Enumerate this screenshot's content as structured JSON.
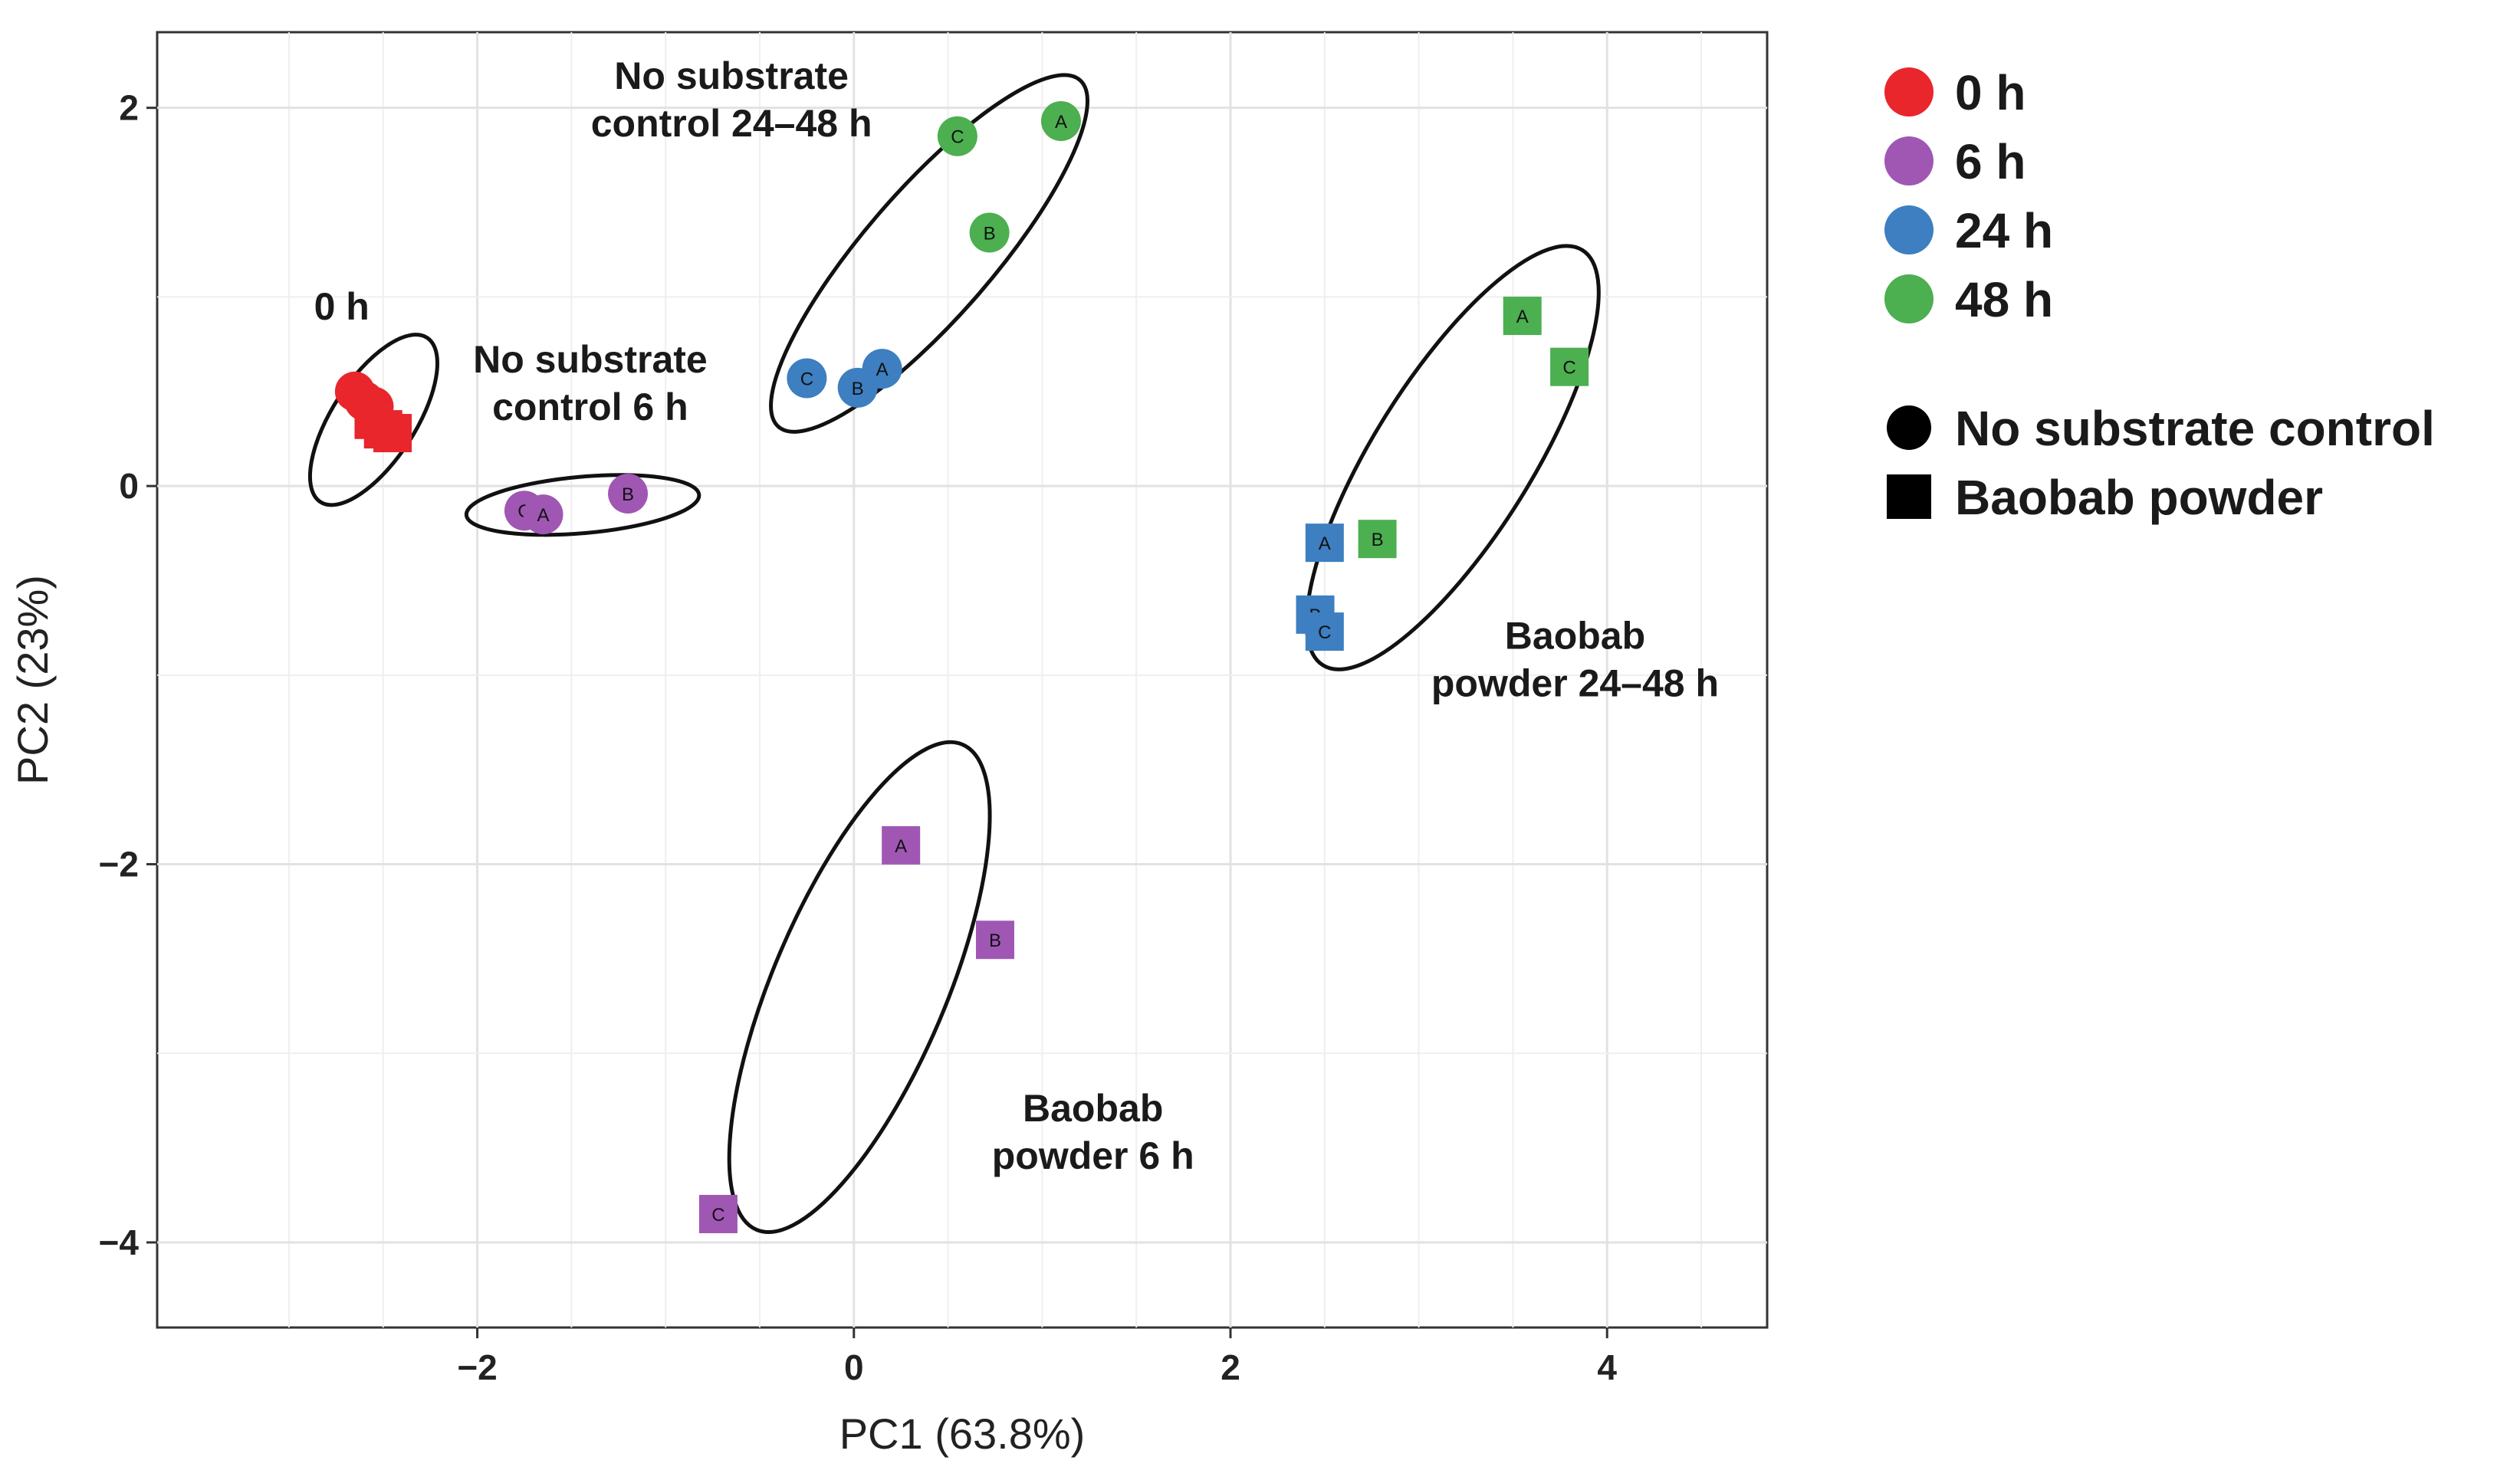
{
  "chart_data": {
    "type": "scatter",
    "xlabel": "PC1 (63.8%)",
    "ylabel": "PC2 (23%)",
    "xlim": [
      -3.7,
      4.85
    ],
    "ylim": [
      -4.45,
      2.4
    ],
    "xticks": [
      -2,
      0,
      2,
      4
    ],
    "yticks": [
      2,
      0,
      -2,
      -4
    ],
    "xtick_labels": [
      "−2",
      "0",
      "2",
      "4"
    ],
    "ytick_labels": [
      "2",
      "0",
      "−2",
      "−4"
    ],
    "grid": true,
    "colors": {
      "0 h": "#e8262b",
      "6 h": "#a057b4",
      "24 h": "#3d7fc1",
      "48 h": "#4caf50"
    },
    "legend": {
      "position": "top-right",
      "time_title": "",
      "time_entries": [
        "0 h",
        "6 h",
        "24 h",
        "48 h"
      ],
      "shape_entries": [
        {
          "shape": "circle",
          "label": "No substrate control"
        },
        {
          "shape": "square",
          "label": "Baobab powder"
        }
      ]
    },
    "points": [
      {
        "group": "0 h",
        "shape": "circle",
        "label": "",
        "x": -2.65,
        "y": 0.5
      },
      {
        "group": "0 h",
        "shape": "circle",
        "label": "",
        "x": -2.6,
        "y": 0.45
      },
      {
        "group": "0 h",
        "shape": "circle",
        "label": "",
        "x": -2.55,
        "y": 0.42
      },
      {
        "group": "0 h",
        "shape": "square",
        "label": "",
        "x": -2.55,
        "y": 0.35
      },
      {
        "group": "0 h",
        "shape": "square",
        "label": "",
        "x": -2.5,
        "y": 0.3
      },
      {
        "group": "0 h",
        "shape": "square",
        "label": "",
        "x": -2.45,
        "y": 0.28
      },
      {
        "group": "6 h",
        "shape": "circle",
        "label": "C",
        "x": -1.75,
        "y": -0.13
      },
      {
        "group": "6 h",
        "shape": "circle",
        "label": "A",
        "x": -1.65,
        "y": -0.15
      },
      {
        "group": "6 h",
        "shape": "circle",
        "label": "B",
        "x": -1.2,
        "y": -0.04
      },
      {
        "group": "24 h",
        "shape": "circle",
        "label": "C",
        "x": -0.25,
        "y": 0.57
      },
      {
        "group": "24 h",
        "shape": "circle",
        "label": "B",
        "x": 0.02,
        "y": 0.52
      },
      {
        "group": "24 h",
        "shape": "circle",
        "label": "A",
        "x": 0.15,
        "y": 0.62
      },
      {
        "group": "48 h",
        "shape": "circle",
        "label": "C",
        "x": 0.55,
        "y": 1.85
      },
      {
        "group": "48 h",
        "shape": "circle",
        "label": "A",
        "x": 1.1,
        "y": 1.93
      },
      {
        "group": "48 h",
        "shape": "circle",
        "label": "B",
        "x": 0.72,
        "y": 1.34
      },
      {
        "group": "6 h",
        "shape": "square",
        "label": "A",
        "x": 0.25,
        "y": -1.9
      },
      {
        "group": "6 h",
        "shape": "square",
        "label": "B",
        "x": 0.75,
        "y": -2.4
      },
      {
        "group": "6 h",
        "shape": "square",
        "label": "C",
        "x": -0.72,
        "y": -3.85
      },
      {
        "group": "24 h",
        "shape": "square",
        "label": "A",
        "x": 2.5,
        "y": -0.3
      },
      {
        "group": "24 h",
        "shape": "square",
        "label": "B",
        "x": 2.45,
        "y": -0.68
      },
      {
        "group": "24 h",
        "shape": "square",
        "label": "C",
        "x": 2.5,
        "y": -0.77
      },
      {
        "group": "48 h",
        "shape": "square",
        "label": "B",
        "x": 2.78,
        "y": -0.28
      },
      {
        "group": "48 h",
        "shape": "square",
        "label": "A",
        "x": 3.55,
        "y": 0.9
      },
      {
        "group": "48 h",
        "shape": "square",
        "label": "C",
        "x": 3.8,
        "y": 0.63
      }
    ],
    "ellipses": [
      {
        "name": "0 h",
        "cx": -2.55,
        "cy": 0.35,
        "rx": 0.52,
        "ry": 0.22,
        "angle_deg": -57
      },
      {
        "name": "No substrate control 6 h",
        "cx": -1.44,
        "cy": -0.1,
        "rx": 0.62,
        "ry": 0.15,
        "angle_deg": -5
      },
      {
        "name": "No substrate control 24-48 h",
        "cx": 0.4,
        "cy": 1.23,
        "rx": 1.22,
        "ry": 0.34,
        "angle_deg": -49
      },
      {
        "name": "Baobab powder 24-48 h",
        "cx": 3.18,
        "cy": 0.15,
        "rx": 1.3,
        "ry": 0.42,
        "angle_deg": -58
      },
      {
        "name": "Baobab powder 6 h",
        "cx": 0.03,
        "cy": -2.65,
        "rx": 1.4,
        "ry": 0.46,
        "angle_deg": -67
      }
    ],
    "annotations": [
      {
        "lines": [
          "No substrate",
          "control 24–48 h"
        ],
        "x": -0.65,
        "y": 2.1,
        "anchor": "middle"
      },
      {
        "lines": [
          "0 h"
        ],
        "x": -2.72,
        "y": 0.88,
        "anchor": "middle"
      },
      {
        "lines": [
          "No substrate",
          "control 6 h"
        ],
        "x": -1.4,
        "y": 0.6,
        "anchor": "middle"
      },
      {
        "lines": [
          "Baobab",
          "powder 24–48 h"
        ],
        "x": 3.83,
        "y": -0.86,
        "anchor": "middle"
      },
      {
        "lines": [
          "Baobab",
          "powder 6 h"
        ],
        "x": 1.27,
        "y": -3.36,
        "anchor": "middle"
      }
    ]
  }
}
